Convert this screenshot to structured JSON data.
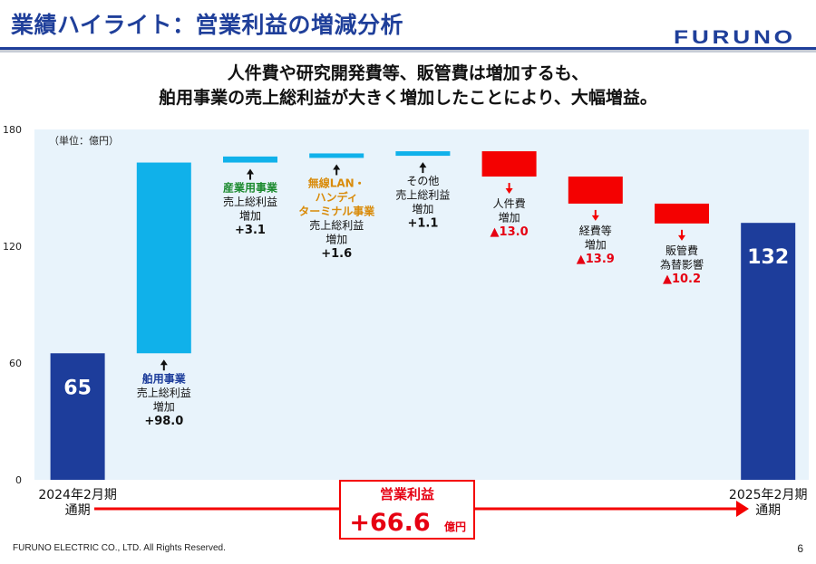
{
  "header": {
    "title": "業績ハイライト：営業利益の増減分析",
    "logo": "FURUNO",
    "headline_line1": "人件費や研究開発費等、販管費は増加するも、",
    "headline_line2": "舶用事業の売上総利益が大きく増加したことにより、大幅増益。"
  },
  "chart_data": {
    "type": "bar",
    "subtype": "waterfall",
    "unit_label": "（単位：億円）",
    "ylim": [
      0,
      180
    ],
    "yticks": [
      0,
      60,
      120,
      180
    ],
    "grid": false,
    "colors": {
      "total": "#1d3d9b",
      "increase": "#10b1ea",
      "decrease": "#f40101",
      "background": "#e8f3fb",
      "highlight_orange": "#d98b0a",
      "highlight_green": "#1b8a2e",
      "text_red": "#e60012"
    },
    "bars": [
      {
        "kind": "total",
        "value": 65,
        "label_value": "65",
        "category_lines": [
          "2024年2月期",
          "通期"
        ]
      },
      {
        "kind": "increase",
        "start": 65,
        "end": 163,
        "label_pos": "below",
        "label_lines": [
          {
            "text": "舶用事業",
            "color": "blue"
          },
          {
            "text": "売上総利益",
            "color": "black"
          },
          {
            "text": "増加",
            "color": "black"
          },
          {
            "text": "+98.0",
            "color": "black",
            "bold": true
          }
        ]
      },
      {
        "kind": "increase",
        "start": 163,
        "end": 166.1,
        "label_pos": "below",
        "label_lines": [
          {
            "text": "産業用事業",
            "color": "green"
          },
          {
            "text": "売上総利益",
            "color": "black"
          },
          {
            "text": "増加",
            "color": "black"
          },
          {
            "text": "+3.1",
            "color": "black",
            "bold": true
          }
        ]
      },
      {
        "kind": "increase",
        "start": 166.1,
        "end": 167.7,
        "label_pos": "below",
        "label_lines": [
          {
            "text": "無線LAN・",
            "color": "orange"
          },
          {
            "text": "ハンディ",
            "color": "orange"
          },
          {
            "text": "ターミナル事業",
            "color": "orange"
          },
          {
            "text": "売上総利益",
            "color": "black"
          },
          {
            "text": "増加",
            "color": "black"
          },
          {
            "text": "+1.6",
            "color": "black",
            "bold": true
          }
        ]
      },
      {
        "kind": "increase",
        "start": 167.7,
        "end": 168.8,
        "label_pos": "below",
        "label_lines": [
          {
            "text": "その他",
            "color": "black"
          },
          {
            "text": "売上総利益",
            "color": "black"
          },
          {
            "text": "増加",
            "color": "black"
          },
          {
            "text": "+1.1",
            "color": "black",
            "bold": true
          }
        ]
      },
      {
        "kind": "decrease",
        "start": 168.8,
        "end": 155.8,
        "label_pos": "below",
        "label_lines": [
          {
            "text": "人件費",
            "color": "black"
          },
          {
            "text": "増加",
            "color": "black"
          },
          {
            "text": "▲13.0",
            "color": "red",
            "bold": true
          }
        ]
      },
      {
        "kind": "decrease",
        "start": 155.8,
        "end": 141.9,
        "label_pos": "below",
        "label_lines": [
          {
            "text": "経費等",
            "color": "black"
          },
          {
            "text": "増加",
            "color": "black"
          },
          {
            "text": "▲13.9",
            "color": "red",
            "bold": true
          }
        ]
      },
      {
        "kind": "decrease",
        "start": 141.9,
        "end": 131.7,
        "label_pos": "below",
        "label_lines": [
          {
            "text": "販管費",
            "color": "black"
          },
          {
            "text": "為替影響",
            "color": "black"
          },
          {
            "text": "▲10.2",
            "color": "red",
            "bold": true
          }
        ]
      },
      {
        "kind": "total",
        "value": 132,
        "label_value": "132",
        "category_lines": [
          "2025年2月期",
          "通期"
        ]
      }
    ],
    "summary": {
      "title": "営業利益",
      "value": "+66.6",
      "unit": "億円"
    }
  },
  "footer": {
    "copyright": "FURUNO ELECTRIC CO., LTD. All Rights Reserved.",
    "page_number": "6"
  }
}
